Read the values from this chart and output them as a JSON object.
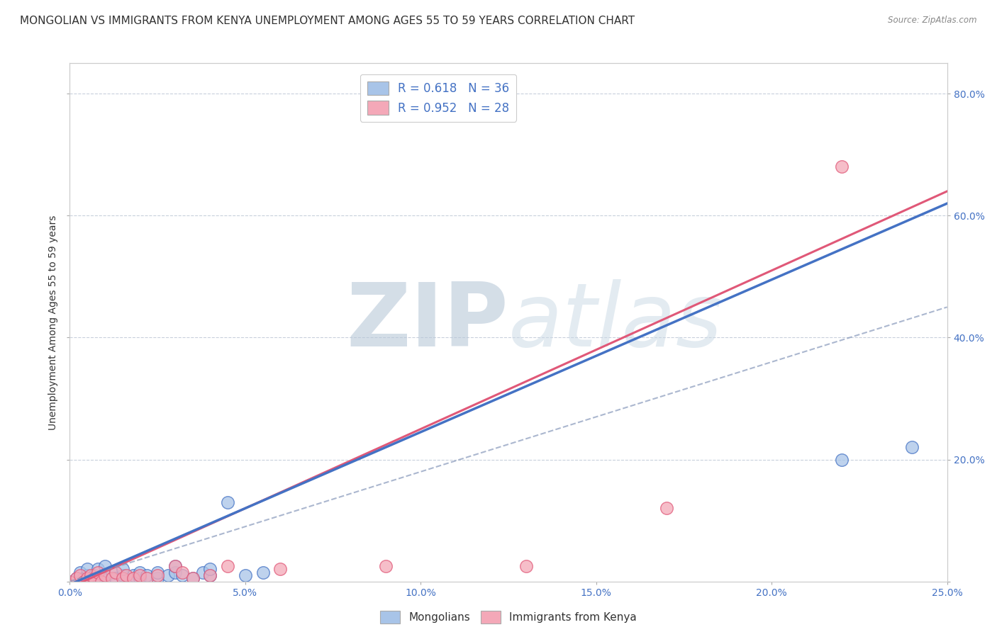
{
  "title": "MONGOLIAN VS IMMIGRANTS FROM KENYA UNEMPLOYMENT AMONG AGES 55 TO 59 YEARS CORRELATION CHART",
  "source": "Source: ZipAtlas.com",
  "ylabel": "Unemployment Among Ages 55 to 59 years",
  "xlim": [
    0.0,
    0.25
  ],
  "ylim": [
    0.0,
    0.85
  ],
  "xticks": [
    0.0,
    0.05,
    0.1,
    0.15,
    0.2,
    0.25
  ],
  "xticklabels": [
    "0.0%",
    "5.0%",
    "10.0%",
    "15.0%",
    "20.0%",
    "25.0%"
  ],
  "ytick_positions": [
    0.0,
    0.2,
    0.4,
    0.6,
    0.8
  ],
  "yticklabels_right": [
    "",
    "20.0%",
    "40.0%",
    "60.0%",
    "80.0%"
  ],
  "mongolian_color": "#a8c4e8",
  "kenya_color": "#f4a8b8",
  "mongolian_line_color": "#4472c4",
  "kenya_line_color": "#e05878",
  "R_mongolian": 0.618,
  "N_mongolian": 36,
  "R_kenya": 0.952,
  "N_kenya": 28,
  "mongolian_scatter": [
    [
      0.0,
      0.0
    ],
    [
      0.002,
      0.005
    ],
    [
      0.003,
      0.015
    ],
    [
      0.004,
      0.005
    ],
    [
      0.005,
      0.01
    ],
    [
      0.005,
      0.02
    ],
    [
      0.006,
      0.005
    ],
    [
      0.007,
      0.01
    ],
    [
      0.008,
      0.005
    ],
    [
      0.008,
      0.02
    ],
    [
      0.01,
      0.005
    ],
    [
      0.01,
      0.01
    ],
    [
      0.01,
      0.025
    ],
    [
      0.012,
      0.015
    ],
    [
      0.013,
      0.005
    ],
    [
      0.015,
      0.01
    ],
    [
      0.015,
      0.02
    ],
    [
      0.018,
      0.01
    ],
    [
      0.02,
      0.005
    ],
    [
      0.02,
      0.015
    ],
    [
      0.022,
      0.01
    ],
    [
      0.025,
      0.005
    ],
    [
      0.025,
      0.015
    ],
    [
      0.028,
      0.01
    ],
    [
      0.03,
      0.015
    ],
    [
      0.03,
      0.025
    ],
    [
      0.032,
      0.01
    ],
    [
      0.035,
      0.005
    ],
    [
      0.038,
      0.015
    ],
    [
      0.04,
      0.01
    ],
    [
      0.04,
      0.02
    ],
    [
      0.045,
      0.13
    ],
    [
      0.05,
      0.01
    ],
    [
      0.055,
      0.015
    ],
    [
      0.24,
      0.22
    ],
    [
      0.22,
      0.2
    ]
  ],
  "kenya_scatter": [
    [
      0.0,
      0.0
    ],
    [
      0.002,
      0.005
    ],
    [
      0.003,
      0.01
    ],
    [
      0.004,
      0.0
    ],
    [
      0.005,
      0.005
    ],
    [
      0.006,
      0.01
    ],
    [
      0.007,
      0.005
    ],
    [
      0.008,
      0.015
    ],
    [
      0.009,
      0.0
    ],
    [
      0.01,
      0.01
    ],
    [
      0.012,
      0.005
    ],
    [
      0.013,
      0.015
    ],
    [
      0.015,
      0.005
    ],
    [
      0.016,
      0.01
    ],
    [
      0.018,
      0.005
    ],
    [
      0.02,
      0.01
    ],
    [
      0.022,
      0.005
    ],
    [
      0.025,
      0.01
    ],
    [
      0.03,
      0.025
    ],
    [
      0.032,
      0.015
    ],
    [
      0.035,
      0.005
    ],
    [
      0.04,
      0.01
    ],
    [
      0.045,
      0.025
    ],
    [
      0.06,
      0.02
    ],
    [
      0.09,
      0.025
    ],
    [
      0.13,
      0.025
    ],
    [
      0.17,
      0.12
    ],
    [
      0.22,
      0.68
    ]
  ],
  "watermark_zip": "ZIP",
  "watermark_atlas": "atlas",
  "watermark_color": "#d0dce8",
  "background_color": "#ffffff",
  "grid_color": "#c8d0dc",
  "title_fontsize": 11,
  "axis_label_fontsize": 10,
  "tick_label_fontsize": 10,
  "tick_label_color": "#4472c4",
  "legend_r_color": "#4472c4",
  "source_color": "#888888"
}
